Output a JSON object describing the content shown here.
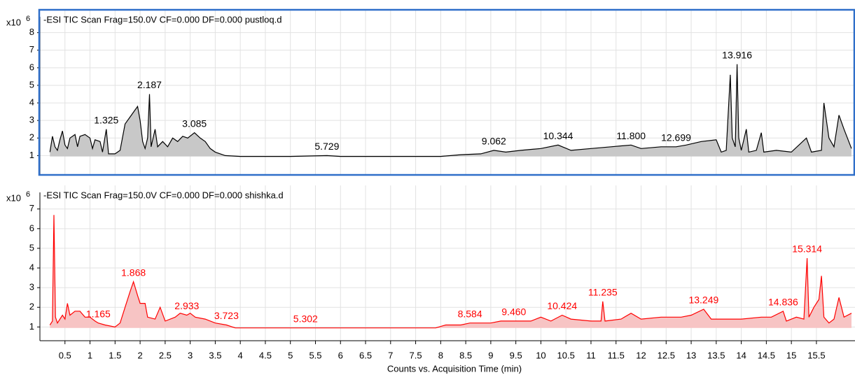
{
  "chart_data": [
    {
      "type": "area",
      "title": "-ESI TIC Scan Frag=150.0V CF=0.000 DF=0.000 pustloq.d",
      "y_scale_base": "x10",
      "y_scale_exponent": "6",
      "line_color": "#000000",
      "fill_color": "#c8c8c8",
      "label_color": "#000000",
      "border_color": "#2f6fc9",
      "x": [
        0.2,
        0.25,
        0.3,
        0.35,
        0.4,
        0.45,
        0.5,
        0.55,
        0.6,
        0.7,
        0.75,
        0.8,
        0.9,
        1.0,
        1.05,
        1.1,
        1.2,
        1.25,
        1.325,
        1.37,
        1.5,
        1.6,
        1.7,
        1.8,
        1.9,
        1.95,
        2.0,
        2.05,
        2.1,
        2.15,
        2.187,
        2.22,
        2.3,
        2.35,
        2.45,
        2.55,
        2.65,
        2.75,
        2.85,
        2.95,
        3.085,
        3.2,
        3.3,
        3.4,
        3.5,
        3.7,
        4.0,
        5.0,
        5.729,
        6.0,
        7.0,
        8.0,
        8.4,
        8.8,
        9.062,
        9.3,
        9.6,
        10.0,
        10.344,
        10.6,
        11.0,
        11.4,
        11.8,
        12.0,
        12.4,
        12.699,
        12.9,
        13.2,
        13.5,
        13.6,
        13.7,
        13.78,
        13.82,
        13.88,
        13.916,
        13.95,
        14.0,
        14.1,
        14.15,
        14.3,
        14.4,
        14.45,
        14.7,
        15.0,
        15.3,
        15.4,
        15.6,
        15.65,
        15.75,
        15.85,
        15.95,
        16.05,
        16.2
      ],
      "values": [
        1.2,
        2.1,
        1.5,
        1.3,
        1.9,
        2.4,
        1.6,
        1.4,
        2.0,
        2.2,
        1.5,
        2.1,
        2.2,
        2.0,
        1.4,
        1.9,
        1.8,
        1.2,
        2.5,
        1.1,
        1.1,
        1.3,
        2.8,
        3.2,
        3.6,
        3.8,
        3.0,
        1.8,
        1.4,
        2.0,
        4.5,
        1.5,
        2.5,
        1.5,
        1.8,
        1.5,
        2.0,
        1.8,
        2.1,
        2.0,
        2.3,
        2.0,
        1.8,
        1.4,
        1.2,
        1.0,
        0.95,
        0.95,
        1.0,
        0.95,
        0.95,
        0.95,
        1.05,
        1.1,
        1.3,
        1.2,
        1.3,
        1.4,
        1.6,
        1.3,
        1.4,
        1.5,
        1.6,
        1.4,
        1.5,
        1.5,
        1.6,
        1.8,
        1.9,
        1.2,
        1.3,
        5.6,
        2.0,
        1.5,
        6.2,
        2.0,
        1.3,
        2.5,
        1.2,
        1.3,
        2.3,
        1.2,
        1.3,
        1.2,
        2.0,
        1.2,
        1.3,
        4.0,
        2.0,
        1.5,
        3.3,
        2.5,
        1.4
      ],
      "peak_labels": [
        {
          "value": 1.325,
          "label": "1.325"
        },
        {
          "value": 2.187,
          "label": "2.187"
        },
        {
          "value": 3.085,
          "label": "3.085"
        },
        {
          "value": 5.729,
          "label": "5.729"
        },
        {
          "value": 9.062,
          "label": "9.062"
        },
        {
          "value": 10.344,
          "label": "10.344"
        },
        {
          "value": 11.8,
          "label": "11.800"
        },
        {
          "value": 12.699,
          "label": "12.699"
        },
        {
          "value": 13.916,
          "label": "13.916"
        }
      ],
      "xlim": [
        0,
        16.27
      ],
      "ylim": [
        -0.1,
        9.3
      ],
      "xticks": [
        0.5,
        1,
        1.5,
        2,
        2.5,
        3,
        3.5,
        4,
        4.5,
        5,
        5.5,
        6,
        6.5,
        7,
        7.5,
        8,
        8.5,
        9,
        9.5,
        10,
        10.5,
        11,
        11.5,
        12,
        12.5,
        13,
        13.5,
        14,
        14.5,
        15,
        15.5
      ],
      "yticks": [
        1,
        2,
        3,
        4,
        5,
        6,
        7,
        8
      ],
      "x_tick_labels": false,
      "grid": true
    },
    {
      "type": "area",
      "title": "-ESI TIC Scan Frag=150.0V CF=0.000 DF=0.000 shishka.d",
      "y_scale_base": "x10",
      "y_scale_exponent": "6",
      "line_color": "#ff0000",
      "fill_color": "#f7c4c4",
      "label_color": "#ff0000",
      "x_label": "Counts vs. Acquisition Time (min)",
      "x": [
        0.2,
        0.25,
        0.28,
        0.31,
        0.35,
        0.45,
        0.5,
        0.55,
        0.6,
        0.7,
        0.8,
        0.9,
        1.0,
        1.1,
        1.165,
        1.3,
        1.5,
        1.6,
        1.7,
        1.8,
        1.868,
        1.95,
        2.0,
        2.1,
        2.15,
        2.3,
        2.4,
        2.5,
        2.7,
        2.8,
        2.933,
        3.0,
        3.1,
        3.3,
        3.5,
        3.723,
        3.9,
        4.5,
        5.302,
        6.0,
        7.0,
        7.9,
        8.1,
        8.4,
        8.584,
        9.0,
        9.2,
        9.46,
        9.8,
        10.0,
        10.2,
        10.424,
        10.6,
        11.0,
        11.2,
        11.235,
        11.28,
        11.6,
        11.8,
        12.0,
        12.4,
        12.8,
        13.0,
        13.249,
        13.4,
        13.8,
        14.0,
        14.4,
        14.6,
        14.836,
        14.9,
        15.1,
        15.25,
        15.314,
        15.35,
        15.45,
        15.55,
        15.6,
        15.65,
        15.75,
        15.85,
        15.95,
        16.05,
        16.2
      ],
      "values": [
        1.1,
        1.3,
        6.7,
        1.5,
        1.2,
        1.6,
        1.4,
        2.2,
        1.6,
        1.8,
        1.8,
        1.5,
        1.5,
        1.3,
        1.2,
        1.1,
        1.0,
        1.2,
        2.0,
        2.8,
        3.3,
        2.6,
        2.2,
        2.2,
        1.5,
        1.4,
        2.0,
        1.3,
        1.5,
        1.7,
        1.6,
        1.7,
        1.5,
        1.4,
        1.2,
        1.1,
        0.95,
        0.95,
        0.95,
        0.95,
        0.95,
        0.95,
        1.1,
        1.1,
        1.2,
        1.2,
        1.3,
        1.3,
        1.3,
        1.5,
        1.3,
        1.6,
        1.4,
        1.3,
        1.3,
        2.3,
        1.3,
        1.4,
        1.7,
        1.4,
        1.5,
        1.5,
        1.6,
        1.9,
        1.4,
        1.4,
        1.4,
        1.5,
        1.5,
        1.8,
        1.3,
        1.5,
        1.4,
        4.5,
        1.5,
        2.0,
        2.4,
        3.6,
        1.5,
        1.2,
        1.4,
        2.5,
        1.5,
        1.7
      ],
      "peak_labels": [
        {
          "value": 1.165,
          "label": "1.165"
        },
        {
          "value": 1.868,
          "label": "1.868"
        },
        {
          "value": 2.933,
          "label": "2.933"
        },
        {
          "value": 3.723,
          "label": "3.723"
        },
        {
          "value": 5.302,
          "label": "5.302"
        },
        {
          "value": 8.584,
          "label": "8.584"
        },
        {
          "value": 9.46,
          "label": "9.460"
        },
        {
          "value": 10.424,
          "label": "10.424"
        },
        {
          "value": 11.235,
          "label": "11.235"
        },
        {
          "value": 13.249,
          "label": "13.249"
        },
        {
          "value": 14.836,
          "label": "14.836"
        },
        {
          "value": 15.314,
          "label": "15.314"
        }
      ],
      "xlim": [
        0,
        16.27
      ],
      "ylim": [
        0.3,
        8.2
      ],
      "xticks": [
        0.5,
        1,
        1.5,
        2,
        2.5,
        3,
        3.5,
        4,
        4.5,
        5,
        5.5,
        6,
        6.5,
        7,
        7.5,
        8,
        8.5,
        9,
        9.5,
        10,
        10.5,
        11,
        11.5,
        12,
        12.5,
        13,
        13.5,
        14,
        14.5,
        15,
        15.5
      ],
      "yticks": [
        1,
        2,
        3,
        4,
        5,
        6,
        7
      ],
      "x_tick_labels": true,
      "grid": true
    }
  ]
}
